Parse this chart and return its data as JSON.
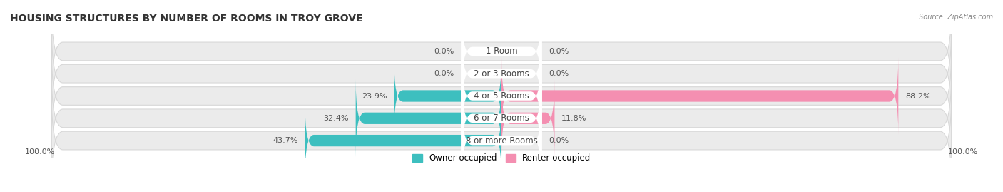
{
  "title": "HOUSING STRUCTURES BY NUMBER OF ROOMS IN TROY GROVE",
  "source": "Source: ZipAtlas.com",
  "categories": [
    "1 Room",
    "2 or 3 Rooms",
    "4 or 5 Rooms",
    "6 or 7 Rooms",
    "8 or more Rooms"
  ],
  "owner_values": [
    0.0,
    0.0,
    23.9,
    32.4,
    43.7
  ],
  "renter_values": [
    0.0,
    0.0,
    88.2,
    11.8,
    0.0
  ],
  "owner_color": "#3DBFBF",
  "renter_color": "#F48FB1",
  "bar_bg_color": "#EBEBEB",
  "bar_bg_edge_color": "#D8D8D8",
  "owner_label": "Owner-occupied",
  "renter_label": "Renter-occupied",
  "axis_label_left": "100.0%",
  "axis_label_right": "100.0%",
  "title_fontsize": 10,
  "label_fontsize": 8,
  "cat_label_fontsize": 8.5,
  "max_value": 100.0,
  "figsize": [
    14.06,
    2.69
  ],
  "dpi": 100,
  "bg_color": "#FFFFFF"
}
